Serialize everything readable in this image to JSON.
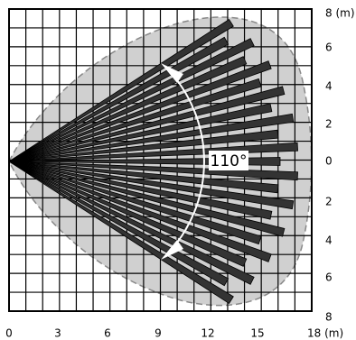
{
  "x_axis_labels": [
    "0",
    "3",
    "6",
    "9",
    "12",
    "15",
    "18 (m)"
  ],
  "y_axis_labels": [
    "8 (m)",
    "6",
    "4",
    "2",
    "0",
    "2",
    "4",
    "6",
    "8"
  ],
  "angle_label": "110°"
}
